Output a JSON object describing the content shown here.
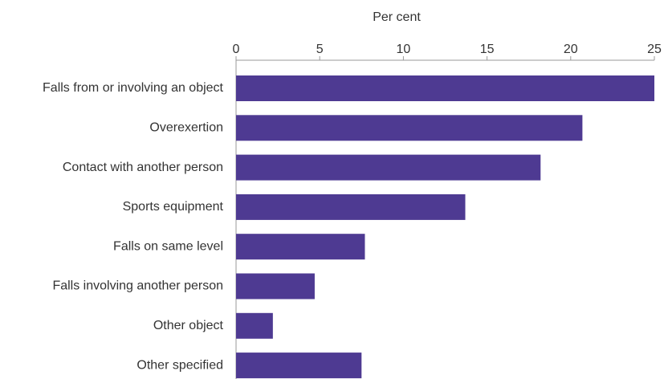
{
  "chart_data": {
    "type": "bar",
    "orientation": "horizontal",
    "x_label": "Per cent",
    "categories": [
      "Falls from or involving an object",
      "Overexertion",
      "Contact with another person",
      "Sports equipment",
      "Falls on same level",
      "Falls involving another person",
      "Other object",
      "Other specified"
    ],
    "values": [
      25.0,
      20.7,
      18.2,
      13.7,
      7.7,
      4.7,
      2.2,
      7.5
    ],
    "color": "#4e3a92",
    "xlim": [
      0,
      25
    ],
    "xticks": [
      0,
      5,
      10,
      15,
      20,
      25
    ],
    "grid": false
  }
}
